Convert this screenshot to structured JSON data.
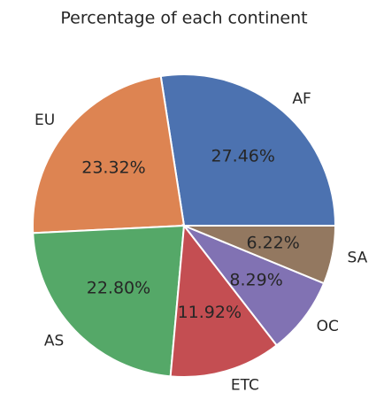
{
  "chart_data": {
    "type": "pie",
    "title": "Percentage of each continent",
    "categories": [
      "AF",
      "EU",
      "AS",
      "ETC",
      "OC",
      "SA"
    ],
    "values": [
      27.46,
      23.32,
      22.8,
      11.92,
      8.29,
      6.22
    ],
    "value_labels": [
      "27.46%",
      "23.32%",
      "22.80%",
      "11.92%",
      "8.29%",
      "6.22%"
    ],
    "colors": [
      "#4c72b0",
      "#dd8452",
      "#55a868",
      "#c44e52",
      "#8172b3",
      "#937860"
    ]
  }
}
